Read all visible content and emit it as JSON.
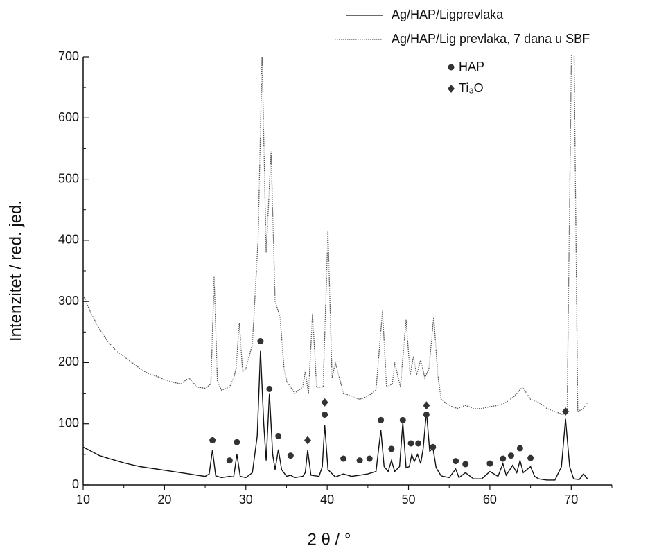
{
  "chart_data": {
    "type": "line",
    "xlabel": "2 θ / °",
    "ylabel": "Intenzitet / red. jed.",
    "xlim": [
      10,
      75
    ],
    "xticks": [
      10,
      20,
      30,
      40,
      50,
      60,
      70
    ],
    "ylim": [
      0,
      700
    ],
    "yticks": [
      0,
      100,
      200,
      300,
      400,
      500,
      600,
      700
    ],
    "series": [
      {
        "name": "Ag/HAP/Ligprevlaka",
        "color": "#111111",
        "dash": "solid",
        "x": [
          10,
          11,
          12,
          13,
          14,
          15,
          16,
          17,
          18,
          19,
          20,
          21,
          22,
          23,
          24,
          25,
          25.5,
          25.9,
          26.3,
          27,
          28,
          28.5,
          28.9,
          29.3,
          30,
          30.8,
          31.4,
          31.8,
          32.2,
          32.5,
          32.9,
          33.3,
          33.6,
          34.0,
          34.4,
          35,
          35.5,
          36,
          37,
          37.3,
          37.6,
          38,
          39,
          39.4,
          39.7,
          40.1,
          41,
          42,
          43,
          44,
          45,
          46,
          46.6,
          47,
          47.5,
          47.9,
          48.3,
          48.9,
          49.3,
          49.7,
          50.1,
          50.4,
          50.7,
          51.1,
          51.5,
          51.8,
          52.2,
          52.6,
          53,
          53.4,
          54,
          55,
          55.8,
          56.2,
          57,
          58,
          59,
          60,
          61,
          61.6,
          62,
          62.8,
          63.3,
          63.7,
          64.1,
          65,
          65.5,
          66,
          67,
          68,
          68.8,
          69.3,
          69.8,
          70.3,
          71,
          71.5,
          72
        ],
        "values": [
          62,
          55,
          48,
          44,
          40,
          36,
          33,
          30,
          28,
          26,
          24,
          22,
          20,
          18,
          16,
          14,
          18,
          57,
          15,
          12,
          14,
          13,
          50,
          14,
          12,
          20,
          80,
          220,
          100,
          40,
          150,
          50,
          25,
          58,
          25,
          14,
          16,
          12,
          14,
          20,
          57,
          16,
          14,
          30,
          98,
          25,
          13,
          18,
          14,
          16,
          18,
          22,
          90,
          30,
          22,
          40,
          22,
          30,
          102,
          28,
          30,
          50,
          38,
          50,
          35,
          60,
          120,
          55,
          60,
          28,
          15,
          12,
          26,
          12,
          20,
          10,
          10,
          22,
          14,
          35,
          16,
          32,
          20,
          40,
          20,
          30,
          14,
          10,
          8,
          8,
          30,
          108,
          30,
          10,
          9,
          18,
          10
        ]
      },
      {
        "name": "Ag/HAP/Lig prevlaka, 7 dana u SBF",
        "color": "#555555",
        "dash": "dotted",
        "x": [
          10,
          11,
          12,
          13,
          14,
          15,
          16,
          17,
          18,
          19,
          20,
          21,
          22,
          23,
          24,
          25,
          25.7,
          26.1,
          26.5,
          27,
          28,
          28.5,
          28.8,
          29.2,
          29.6,
          30,
          30.8,
          31.5,
          32.0,
          32.5,
          33.1,
          33.6,
          34.2,
          34.7,
          35,
          36,
          37,
          37.3,
          37.7,
          38.2,
          38.7,
          39.5,
          40.1,
          40.6,
          41,
          42,
          43,
          44,
          45,
          46,
          46.8,
          47.3,
          48,
          48.3,
          49,
          49.7,
          50.2,
          50.6,
          51,
          51.5,
          52,
          52.5,
          53.1,
          53.6,
          54,
          55,
          56,
          57,
          58,
          59,
          60,
          61,
          62,
          63,
          64,
          65,
          66,
          67,
          68,
          69,
          69.5,
          70.2,
          70.8,
          71.5,
          72
        ],
        "values": [
          310,
          280,
          255,
          235,
          220,
          210,
          200,
          190,
          182,
          178,
          172,
          168,
          165,
          175,
          160,
          158,
          165,
          340,
          170,
          155,
          160,
          175,
          190,
          265,
          185,
          190,
          230,
          400,
          700,
          380,
          545,
          300,
          275,
          190,
          170,
          150,
          160,
          185,
          150,
          280,
          160,
          160,
          415,
          175,
          200,
          150,
          145,
          140,
          145,
          155,
          285,
          160,
          165,
          200,
          160,
          270,
          180,
          210,
          180,
          205,
          175,
          190,
          275,
          180,
          140,
          130,
          125,
          130,
          125,
          125,
          128,
          130,
          135,
          145,
          160,
          140,
          135,
          125,
          120,
          115,
          125,
          900,
          120,
          125,
          135
        ]
      }
    ],
    "markers": [
      {
        "name": "HAP",
        "shape": "circle",
        "color": "#333333",
        "x": [
          25.9,
          28,
          28.9,
          31.8,
          32.9,
          34,
          35.5,
          39.7,
          42,
          44,
          45.2,
          46.6,
          47.9,
          49.3,
          50.3,
          51.2,
          52.2,
          53,
          55.8,
          57,
          60,
          61.6,
          62.6,
          63.7,
          65
        ],
        "values": [
          73,
          40,
          70,
          235,
          157,
          80,
          48,
          115,
          43,
          40,
          43,
          106,
          59,
          106,
          68,
          68,
          115,
          62,
          39,
          34,
          35,
          43,
          48,
          60,
          44
        ]
      },
      {
        "name": "Ti₃O",
        "shape": "diamond",
        "color": "#333333",
        "x": [
          37.6,
          39.7,
          52.2,
          69.3
        ],
        "values": [
          73,
          135,
          130,
          120
        ]
      }
    ]
  }
}
